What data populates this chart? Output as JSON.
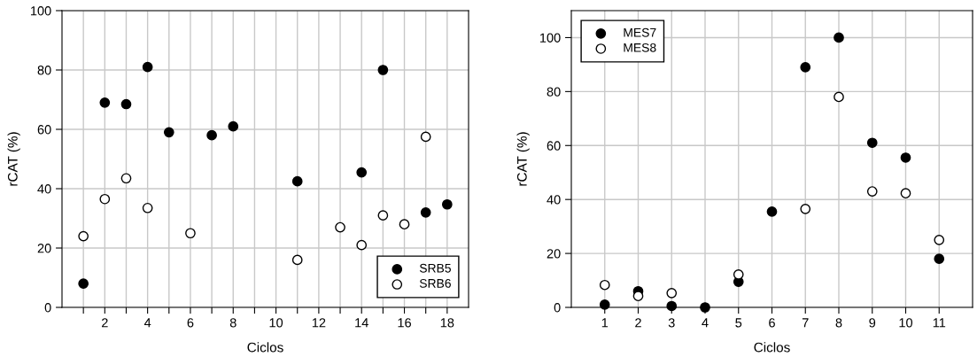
{
  "chart_data": [
    {
      "type": "scatter",
      "xlabel": "Ciclos",
      "ylabel": "rCAT (%)",
      "xlim": [
        0,
        19
      ],
      "ylim": [
        0,
        100
      ],
      "xticks": [
        {
          "value": 1,
          "label": null
        },
        2,
        {
          "value": 3,
          "label": null
        },
        4,
        {
          "value": 5,
          "label": null
        },
        6,
        {
          "value": 7,
          "label": null
        },
        8,
        {
          "value": 9,
          "label": null
        },
        10,
        {
          "value": 11,
          "label": null
        },
        12,
        {
          "value": 13,
          "label": null
        },
        14,
        {
          "value": 15,
          "label": null
        },
        16,
        {
          "value": 17,
          "label": null
        },
        18
      ],
      "yticks": [
        0,
        20,
        40,
        60,
        80,
        100
      ],
      "grid": true,
      "legend": "bottom right",
      "marker": "circle",
      "series": [
        {
          "name": "SRB5",
          "color": "#000000",
          "x": [
            1,
            2,
            3,
            4,
            5,
            7,
            8,
            11,
            14,
            15,
            17,
            18
          ],
          "values": [
            8,
            69,
            68.5,
            81,
            59,
            58,
            61,
            42.5,
            45.5,
            80,
            32,
            34.7
          ]
        },
        {
          "name": "SRB6",
          "color": "#ffffff",
          "x": [
            1,
            2,
            3,
            4,
            6,
            11,
            13,
            14,
            15,
            16,
            17
          ],
          "values": [
            24,
            36.5,
            43.5,
            33.5,
            25,
            16,
            27,
            21,
            31,
            28,
            57.5
          ]
        }
      ]
    },
    {
      "type": "scatter",
      "xlabel": "Ciclos",
      "ylabel": "rCAT (%)",
      "xlim": [
        0,
        12
      ],
      "ylim": [
        0,
        110
      ],
      "xticks": [
        1,
        2,
        3,
        4,
        5,
        6,
        7,
        8,
        9,
        10,
        11
      ],
      "yticks": [
        0,
        20,
        40,
        60,
        80,
        100
      ],
      "grid": true,
      "legend": "top left",
      "marker": "circle",
      "series": [
        {
          "name": "MES7",
          "color": "#000000",
          "x": [
            1,
            2,
            3,
            4,
            5,
            6,
            7,
            8,
            9,
            10,
            11
          ],
          "values": [
            1,
            6,
            0.5,
            0,
            9.5,
            35.5,
            89,
            100,
            61,
            55.5,
            18
          ]
        },
        {
          "name": "MES8",
          "color": "#ffffff",
          "x": [
            1,
            2,
            3,
            5,
            7,
            8,
            9,
            10,
            11
          ],
          "values": [
            8.3,
            4.2,
            5.3,
            12.2,
            36.5,
            78,
            43,
            42.3,
            25
          ]
        }
      ]
    }
  ]
}
